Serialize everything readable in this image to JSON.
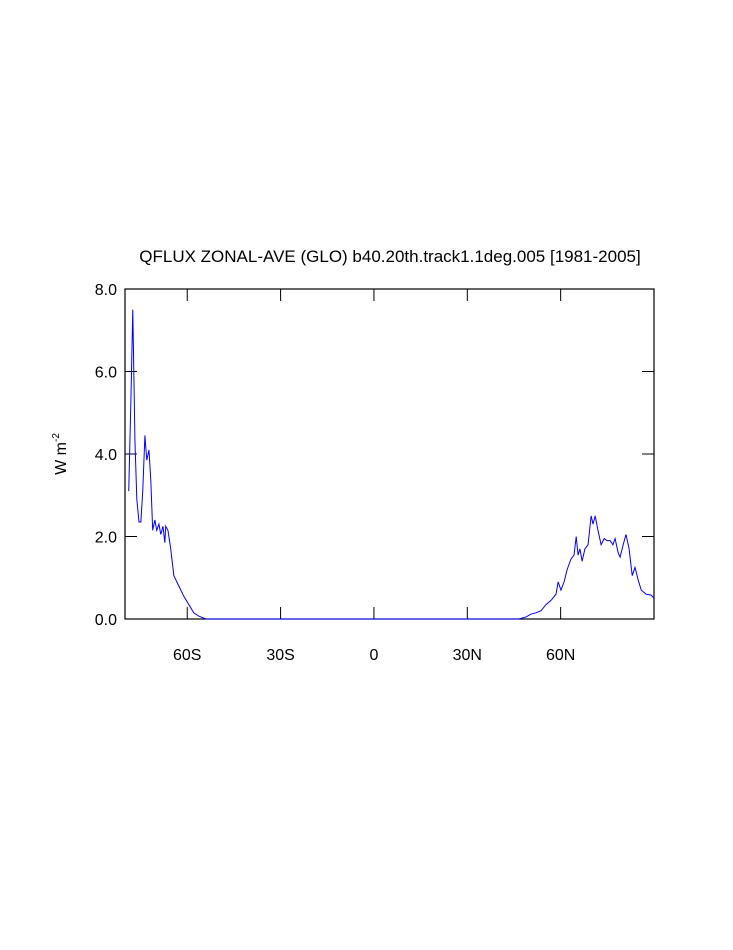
{
  "chart_data": {
    "type": "line",
    "title": "QFLUX ZONAL-AVE (GLO) b40.20th.track1.1deg.005 [1981-2005]",
    "y_label": "W m",
    "y_label_superscript": "-2",
    "xlim": [
      -80,
      90
    ],
    "ylim": [
      0,
      8
    ],
    "xticks": [
      {
        "value": -60,
        "label": "60S"
      },
      {
        "value": -30,
        "label": "30S"
      },
      0,
      {
        "value": 30,
        "label": "30N"
      },
      {
        "value": 60,
        "label": "60N"
      }
    ],
    "yticks": [
      {
        "value": 0,
        "label": "0.0"
      },
      {
        "value": 2,
        "label": "2.0"
      },
      {
        "value": 4,
        "label": "4.0"
      },
      {
        "value": 6,
        "label": "6.0"
      },
      {
        "value": 8,
        "label": "8.0"
      }
    ],
    "grid": false,
    "x": [
      -78.8,
      -78.1,
      -77.5,
      -76.8,
      -76.2,
      -75.5,
      -74.9,
      -74.3,
      -73.6,
      -73.0,
      -72.3,
      -71.7,
      -71.1,
      -70.4,
      -69.8,
      -69.1,
      -68.5,
      -67.8,
      -67.2,
      -66.9,
      -66.2,
      -65.3,
      -64.3,
      -62.7,
      -61.1,
      -59.5,
      -57.9,
      -56.3,
      -54.0,
      46.6,
      48.9,
      50.5,
      52.1,
      53.7,
      55.3,
      56.9,
      58.5,
      59.2,
      60.1,
      61.1,
      62.1,
      63.3,
      64.3,
      65.0,
      65.6,
      66.2,
      66.9,
      67.8,
      68.8,
      69.8,
      70.4,
      71.1,
      72.0,
      73.0,
      74.0,
      74.9,
      75.9,
      76.8,
      77.5,
      78.5,
      79.1,
      80.1,
      81.0,
      82.0,
      83.0,
      83.9,
      84.9,
      85.9,
      87.5,
      89.1,
      90
    ],
    "series": [
      {
        "name": "QFLUX",
        "color": "#0000ff",
        "values": [
          3.1,
          5.3,
          7.5,
          4.3,
          2.9,
          2.35,
          2.35,
          3.1,
          4.45,
          3.85,
          4.1,
          3.35,
          2.15,
          2.4,
          2.15,
          2.3,
          2.05,
          2.25,
          1.85,
          2.25,
          2.15,
          1.7,
          1.05,
          0.8,
          0.55,
          0.35,
          0.15,
          0.07,
          0,
          0,
          0.05,
          0.12,
          0.15,
          0.2,
          0.35,
          0.45,
          0.6,
          0.9,
          0.7,
          0.9,
          1.2,
          1.45,
          1.55,
          2.0,
          1.55,
          1.7,
          1.4,
          1.7,
          1.8,
          2.5,
          2.3,
          2.5,
          2.15,
          1.8,
          1.95,
          1.9,
          1.9,
          1.8,
          1.95,
          1.6,
          1.5,
          1.8,
          2.05,
          1.7,
          1.05,
          1.25,
          0.95,
          0.7,
          0.6,
          0.58,
          0.5
        ]
      }
    ]
  }
}
